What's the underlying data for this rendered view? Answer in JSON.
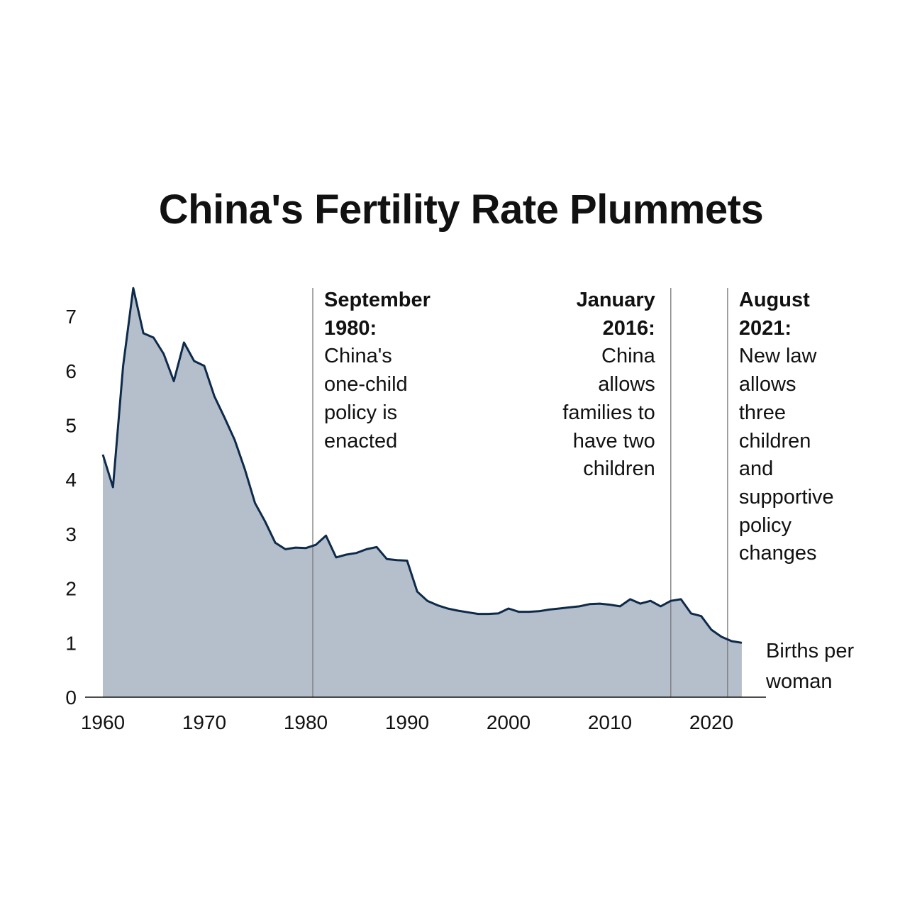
{
  "chart_data": {
    "type": "area",
    "title": "China's Fertility Rate Plummets",
    "unit_label": [
      "Births per",
      "woman"
    ],
    "xlim": [
      1960,
      2024
    ],
    "ylim": [
      0,
      7.6
    ],
    "x_ticks": [
      1960,
      1970,
      1980,
      1990,
      2000,
      2010,
      2020
    ],
    "y_ticks": [
      0,
      1,
      2,
      3,
      4,
      5,
      6,
      7
    ],
    "grid": false,
    "colors": {
      "fill": "#b5bfcb",
      "line": "#0e2a4a",
      "annotation_line": "#777777"
    },
    "x": [
      1960,
      1961,
      1962,
      1963,
      1964,
      1965,
      1966,
      1967,
      1968,
      1969,
      1970,
      1971,
      1972,
      1973,
      1974,
      1975,
      1976,
      1977,
      1978,
      1979,
      1980,
      1981,
      1982,
      1983,
      1984,
      1985,
      1986,
      1987,
      1988,
      1989,
      1990,
      1991,
      1992,
      1993,
      1994,
      1995,
      1996,
      1997,
      1998,
      1999,
      2000,
      2001,
      2002,
      2003,
      2004,
      2005,
      2006,
      2007,
      2008,
      2009,
      2010,
      2011,
      2012,
      2013,
      2014,
      2015,
      2016,
      2017,
      2018,
      2019,
      2020,
      2021,
      2022,
      2023
    ],
    "values": [
      4.46,
      3.86,
      6.09,
      7.52,
      6.69,
      6.61,
      6.31,
      5.81,
      6.52,
      6.18,
      6.09,
      5.53,
      5.14,
      4.73,
      4.19,
      3.57,
      3.23,
      2.84,
      2.72,
      2.75,
      2.74,
      2.8,
      2.97,
      2.57,
      2.62,
      2.65,
      2.72,
      2.76,
      2.54,
      2.52,
      2.51,
      1.94,
      1.77,
      1.69,
      1.63,
      1.59,
      1.56,
      1.53,
      1.53,
      1.54,
      1.63,
      1.57,
      1.57,
      1.58,
      1.61,
      1.63,
      1.65,
      1.67,
      1.71,
      1.72,
      1.7,
      1.67,
      1.8,
      1.72,
      1.77,
      1.67,
      1.77,
      1.8,
      1.54,
      1.49,
      1.24,
      1.11,
      1.03,
      1.0
    ],
    "annotations": [
      {
        "x": 1980.7,
        "align": "left",
        "heading": [
          "September",
          "1980:"
        ],
        "body": [
          "China's",
          "one-child",
          "policy is",
          "enacted"
        ]
      },
      {
        "x": 2016.0,
        "align": "right",
        "heading": [
          "January",
          "2016:"
        ],
        "body": [
          "China",
          "allows",
          "families to",
          "have two",
          "children"
        ]
      },
      {
        "x": 2021.6,
        "align": "left",
        "heading": [
          "August",
          "2021:"
        ],
        "body": [
          "New law",
          "allows",
          "three",
          "children",
          "and",
          "supportive",
          "policy",
          "changes"
        ]
      }
    ]
  }
}
